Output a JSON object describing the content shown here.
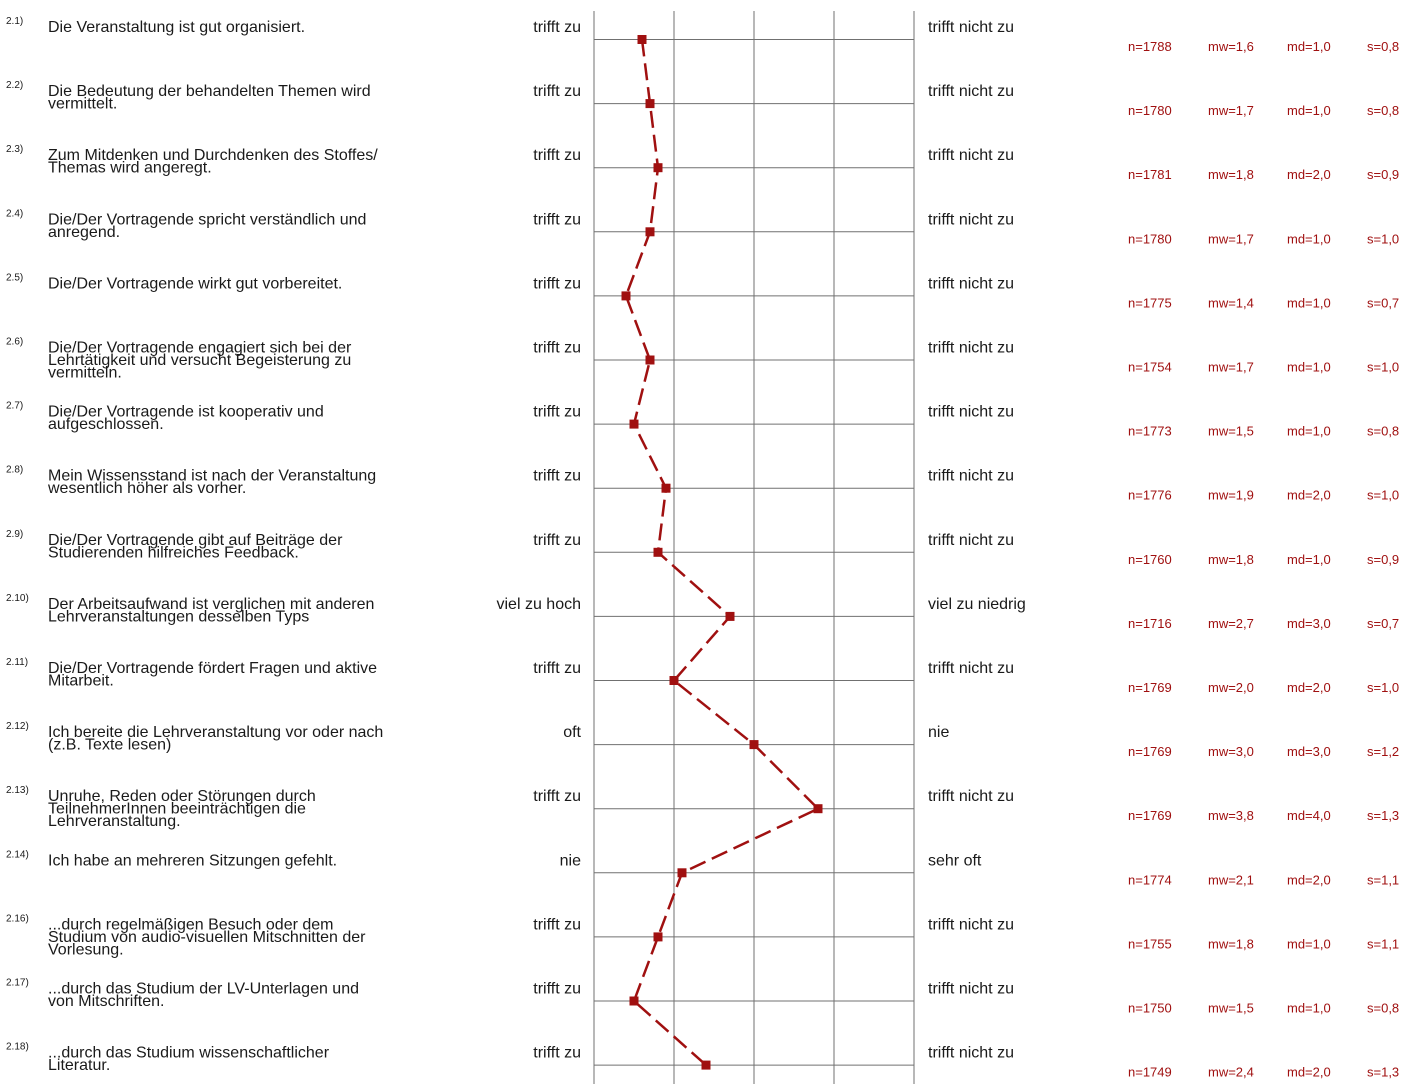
{
  "colors": {
    "line": "#a01010",
    "grid": "#707070",
    "text": "#1a1a1a",
    "stats": "#a01010"
  },
  "chart_data": {
    "type": "line",
    "orientation": "vertical-profile",
    "xlim": [
      1,
      5
    ],
    "items": [
      {
        "num": "2.1)",
        "lines": [
          "Die Veranstaltung ist gut organisiert."
        ],
        "left": "trifft zu",
        "right": "trifft nicht zu",
        "n": "n=1788",
        "mw_label": "mw=1,6",
        "md": "md=1,0",
        "s": "s=0,8",
        "mw": 1.6
      },
      {
        "num": "2.2)",
        "lines": [
          "Die Bedeutung der behandelten Themen wird",
          "vermittelt."
        ],
        "left": "trifft zu",
        "right": "trifft nicht zu",
        "n": "n=1780",
        "mw_label": "mw=1,7",
        "md": "md=1,0",
        "s": "s=0,8",
        "mw": 1.7
      },
      {
        "num": "2.3)",
        "lines": [
          "Zum Mitdenken und Durchdenken des Stoffes/",
          "Themas wird angeregt."
        ],
        "left": "trifft zu",
        "right": "trifft nicht zu",
        "n": "n=1781",
        "mw_label": "mw=1,8",
        "md": "md=2,0",
        "s": "s=0,9",
        "mw": 1.8
      },
      {
        "num": "2.4)",
        "lines": [
          "Die/Der Vortragende spricht verständlich und",
          "anregend."
        ],
        "left": "trifft zu",
        "right": "trifft nicht zu",
        "n": "n=1780",
        "mw_label": "mw=1,7",
        "md": "md=1,0",
        "s": "s=1,0",
        "mw": 1.7
      },
      {
        "num": "2.5)",
        "lines": [
          "Die/Der Vortragende wirkt gut vorbereitet."
        ],
        "left": "trifft zu",
        "right": "trifft nicht zu",
        "n": "n=1775",
        "mw_label": "mw=1,4",
        "md": "md=1,0",
        "s": "s=0,7",
        "mw": 1.4
      },
      {
        "num": "2.6)",
        "lines": [
          "Die/Der Vortragende engagiert sich bei der",
          "Lehrtätigkeit und versucht Begeisterung zu",
          "vermitteln."
        ],
        "left": "trifft zu",
        "right": "trifft nicht zu",
        "n": "n=1754",
        "mw_label": "mw=1,7",
        "md": "md=1,0",
        "s": "s=1,0",
        "mw": 1.7
      },
      {
        "num": "2.7)",
        "lines": [
          "Die/Der Vortragende ist kooperativ und",
          "aufgeschlossen."
        ],
        "left": "trifft zu",
        "right": "trifft nicht zu",
        "n": "n=1773",
        "mw_label": "mw=1,5",
        "md": "md=1,0",
        "s": "s=0,8",
        "mw": 1.5
      },
      {
        "num": "2.8)",
        "lines": [
          "Mein Wissensstand ist nach der Veranstaltung",
          "wesentlich höher als vorher."
        ],
        "left": "trifft zu",
        "right": "trifft nicht zu",
        "n": "n=1776",
        "mw_label": "mw=1,9",
        "md": "md=2,0",
        "s": "s=1,0",
        "mw": 1.9
      },
      {
        "num": "2.9)",
        "lines": [
          "Die/Der Vortragende gibt auf Beiträge der",
          "Studierenden hilfreiches Feedback."
        ],
        "left": "trifft zu",
        "right": "trifft nicht zu",
        "n": "n=1760",
        "mw_label": "mw=1,8",
        "md": "md=1,0",
        "s": "s=0,9",
        "mw": 1.8
      },
      {
        "num": "2.10)",
        "lines": [
          "Der Arbeitsaufwand ist verglichen mit anderen",
          "Lehrveranstaltungen desselben Typs"
        ],
        "left": "viel zu hoch",
        "right": "viel zu niedrig",
        "n": "n=1716",
        "mw_label": "mw=2,7",
        "md": "md=3,0",
        "s": "s=0,7",
        "mw": 2.7
      },
      {
        "num": "2.11)",
        "lines": [
          "Die/Der Vortragende fördert Fragen und aktive",
          "Mitarbeit."
        ],
        "left": "trifft zu",
        "right": "trifft nicht zu",
        "n": "n=1769",
        "mw_label": "mw=2,0",
        "md": "md=2,0",
        "s": "s=1,0",
        "mw": 2.0
      },
      {
        "num": "2.12)",
        "lines": [
          "Ich bereite die Lehrveranstaltung vor oder nach",
          "(z.B. Texte lesen)"
        ],
        "left": "oft",
        "right": "nie",
        "n": "n=1769",
        "mw_label": "mw=3,0",
        "md": "md=3,0",
        "s": "s=1,2",
        "mw": 3.0
      },
      {
        "num": "2.13)",
        "lines": [
          "Unruhe, Reden oder Störungen durch",
          "TeilnehmerInnen beeinträchtigen die",
          "Lehrveranstaltung."
        ],
        "left": "trifft zu",
        "right": "trifft nicht zu",
        "n": "n=1769",
        "mw_label": "mw=3,8",
        "md": "md=4,0",
        "s": "s=1,3",
        "mw": 3.8
      },
      {
        "num": "2.14)",
        "lines": [
          "Ich habe an mehreren Sitzungen gefehlt."
        ],
        "left": "nie",
        "right": "sehr oft",
        "n": "n=1774",
        "mw_label": "mw=2,1",
        "md": "md=2,0",
        "s": "s=1,1",
        "mw": 2.1
      },
      {
        "num": "2.16)",
        "lines": [
          "...durch regelmäßigen Besuch oder dem",
          "Studium von audio-visuellen Mitschnitten der",
          "Vorlesung."
        ],
        "left": "trifft zu",
        "right": "trifft nicht zu",
        "n": "n=1755",
        "mw_label": "mw=1,8",
        "md": "md=1,0",
        "s": "s=1,1",
        "mw": 1.8
      },
      {
        "num": "2.17)",
        "lines": [
          "...durch das Studium der LV-Unterlagen und",
          "von Mitschriften."
        ],
        "left": "trifft zu",
        "right": "trifft nicht zu",
        "n": "n=1750",
        "mw_label": "mw=1,5",
        "md": "md=1,0",
        "s": "s=0,8",
        "mw": 1.5
      },
      {
        "num": "2.18)",
        "lines": [
          "...durch das Studium wissenschaftlicher",
          "Literatur."
        ],
        "left": "trifft zu",
        "right": "trifft nicht zu",
        "n": "n=1749",
        "mw_label": "mw=2,4",
        "md": "md=2,0",
        "s": "s=1,3",
        "mw": 2.4
      }
    ]
  }
}
